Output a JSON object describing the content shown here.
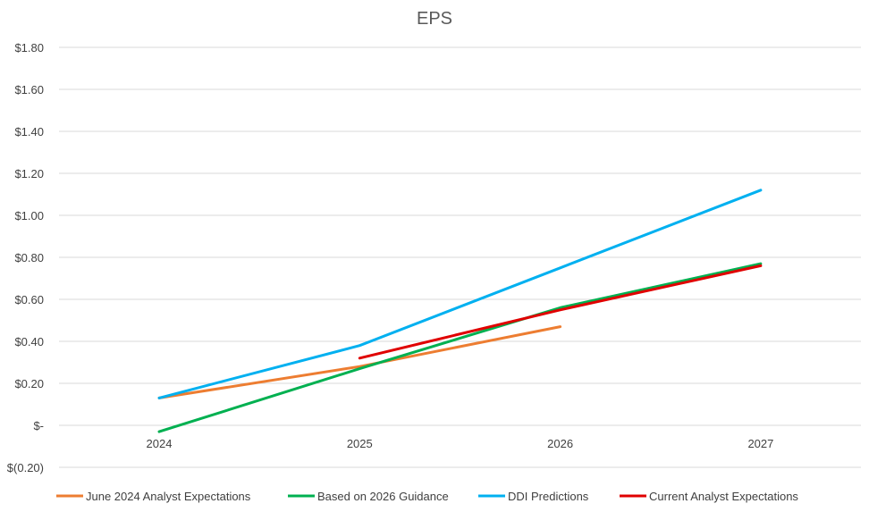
{
  "chart_data": {
    "type": "line",
    "title": "EPS",
    "xlabel": "",
    "ylabel": "",
    "ylim": [
      -0.2,
      1.8
    ],
    "yticks": [
      {
        "value": 1.8,
        "label": "$1.80"
      },
      {
        "value": 1.6,
        "label": "$1.60"
      },
      {
        "value": 1.4,
        "label": "$1.40"
      },
      {
        "value": 1.2,
        "label": "$1.20"
      },
      {
        "value": 1.0,
        "label": "$1.00"
      },
      {
        "value": 0.8,
        "label": "$0.80"
      },
      {
        "value": 0.6,
        "label": "$0.60"
      },
      {
        "value": 0.4,
        "label": "$0.40"
      },
      {
        "value": 0.2,
        "label": "$0.20"
      },
      {
        "value": 0.0,
        "label": "$-"
      },
      {
        "value": -0.2,
        "label": "$(0.20)"
      }
    ],
    "categories": [
      "2024",
      "2025",
      "2026",
      "2027"
    ],
    "grid": true,
    "legend_position": "bottom",
    "series": [
      {
        "name": "June 2024 Analyst Expectations",
        "color": "#ED7D31",
        "values": [
          0.13,
          0.28,
          0.47,
          null
        ]
      },
      {
        "name": "Based on 2026 Guidance",
        "color": "#00B050",
        "values": [
          -0.03,
          0.27,
          0.56,
          0.77
        ]
      },
      {
        "name": "DDI Predictions",
        "color": "#00B0F0",
        "values": [
          0.13,
          0.38,
          0.75,
          1.12
        ]
      },
      {
        "name": "Current Analyst Expectations",
        "color": "#E00000",
        "values": [
          null,
          0.32,
          0.55,
          0.76
        ]
      }
    ]
  }
}
